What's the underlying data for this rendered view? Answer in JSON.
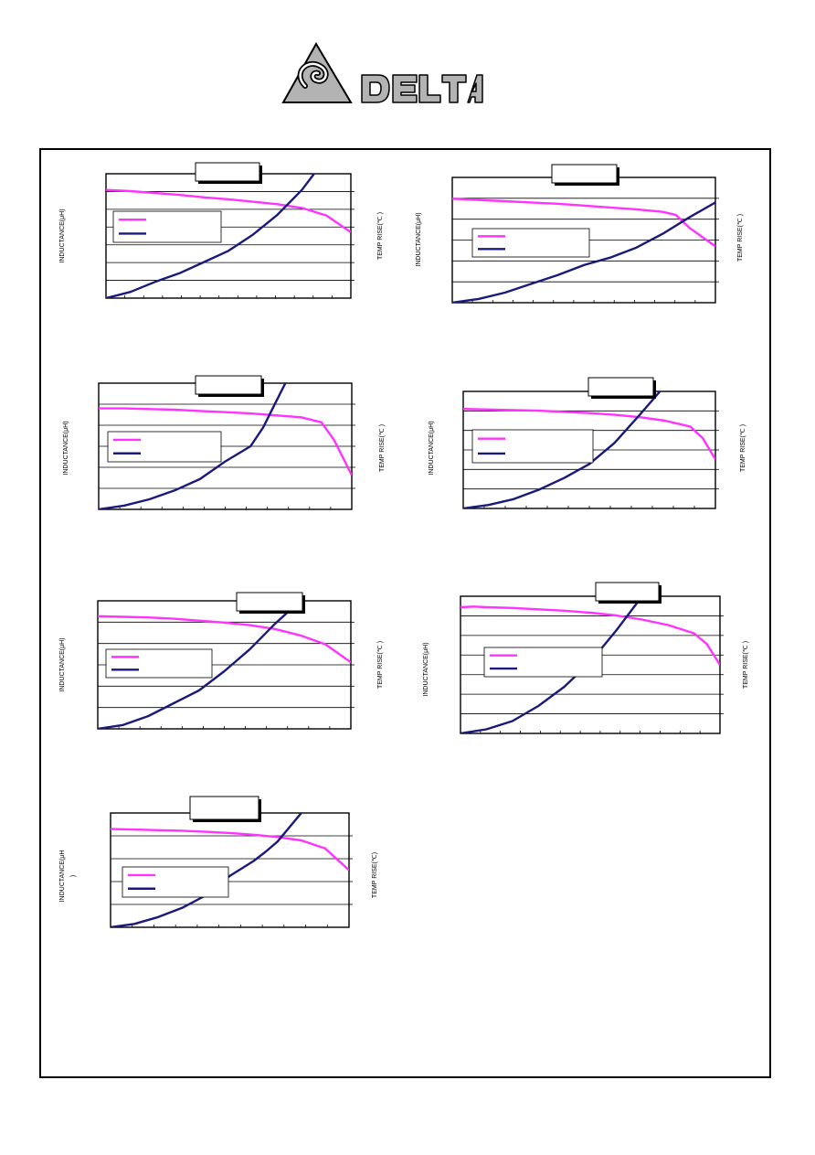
{
  "logo": {
    "brand": "DELTA",
    "colors": {
      "fill": "#a9a9a9",
      "stroke": "#000000"
    }
  },
  "colors": {
    "inductance": "#ff33ff",
    "temp_rise": "#1a1a7a",
    "grid": "#000000",
    "frame": "#000000"
  },
  "chart_data": [
    {
      "type": "line",
      "ylabel_left": "INDUCTANCE(μH)",
      "ylabel_right": "TEMP RISE(℃ )",
      "grid": "horizontal",
      "legend": "upper-left",
      "series": [
        {
          "x": [
            0,
            0.1,
            0.2,
            0.3,
            0.4,
            0.5,
            0.6,
            0.7,
            0.8,
            0.9,
            1
          ],
          "values": [
            0.87,
            0.86,
            0.845,
            0.83,
            0.81,
            0.795,
            0.775,
            0.755,
            0.725,
            0.665,
            0.53
          ]
        },
        {
          "x": [
            0,
            0.1,
            0.2,
            0.3,
            0.4,
            0.5,
            0.6,
            0.7,
            0.8,
            0.85,
            0.88,
            0.9
          ],
          "values": [
            0,
            0.05,
            0.13,
            0.2,
            0.29,
            0.38,
            0.51,
            0.67,
            0.87,
            1.0,
            1.07,
            1.15
          ]
        }
      ]
    },
    {
      "type": "line",
      "ylabel_left": "INDUCTANCE(μH)",
      "ylabel_right": "TEMP RISE(℃ )",
      "grid": "horizontal",
      "legend": "left",
      "series": [
        {
          "x": [
            0,
            0.1,
            0.2,
            0.3,
            0.4,
            0.5,
            0.6,
            0.7,
            0.8,
            0.85,
            0.9,
            1
          ],
          "values": [
            0.83,
            0.82,
            0.81,
            0.8,
            0.79,
            0.775,
            0.76,
            0.745,
            0.725,
            0.7,
            0.6,
            0.45
          ]
        },
        {
          "x": [
            0,
            0.1,
            0.2,
            0.3,
            0.4,
            0.5,
            0.6,
            0.7,
            0.8,
            0.9,
            1
          ],
          "values": [
            0,
            0.03,
            0.08,
            0.15,
            0.22,
            0.3,
            0.36,
            0.44,
            0.55,
            0.68,
            0.8
          ]
        }
      ]
    },
    {
      "type": "line",
      "ylabel_left": "INDUCTANCE(μH)",
      "ylabel_right": "TEMP RISE(℃ )",
      "grid": "horizontal",
      "legend": "left",
      "series": [
        {
          "x": [
            0,
            0.1,
            0.2,
            0.3,
            0.4,
            0.5,
            0.6,
            0.7,
            0.8,
            0.88,
            0.93,
            1
          ],
          "values": [
            0.8,
            0.8,
            0.795,
            0.79,
            0.78,
            0.77,
            0.76,
            0.745,
            0.73,
            0.69,
            0.55,
            0.27
          ]
        },
        {
          "x": [
            0,
            0.1,
            0.2,
            0.3,
            0.4,
            0.5,
            0.6,
            0.65,
            0.7,
            0.75,
            0.8
          ],
          "values": [
            0,
            0.03,
            0.08,
            0.15,
            0.24,
            0.38,
            0.5,
            0.65,
            0.85,
            1.05,
            1.2
          ]
        }
      ]
    },
    {
      "type": "line",
      "ylabel_left": "INDUCTANCE(μH)",
      "ylabel_right": "TEMP RISE(℃ )",
      "grid": "horizontal",
      "legend": "left",
      "series": [
        {
          "x": [
            0,
            0.1,
            0.2,
            0.3,
            0.4,
            0.5,
            0.6,
            0.7,
            0.8,
            0.9,
            0.95,
            1
          ],
          "values": [
            0.85,
            0.845,
            0.84,
            0.835,
            0.825,
            0.815,
            0.8,
            0.78,
            0.75,
            0.7,
            0.6,
            0.42
          ]
        },
        {
          "x": [
            0,
            0.1,
            0.2,
            0.3,
            0.4,
            0.5,
            0.6,
            0.7,
            0.8,
            0.9
          ],
          "values": [
            0,
            0.03,
            0.08,
            0.16,
            0.26,
            0.38,
            0.56,
            0.8,
            1.05,
            1.3
          ]
        }
      ]
    },
    {
      "type": "line",
      "ylabel_left": "INDUCTANCE(μH)",
      "ylabel_right": "TEMP RISE(℃ )",
      "grid": "horizontal",
      "legend": "left",
      "series": [
        {
          "x": [
            0,
            0.1,
            0.2,
            0.3,
            0.4,
            0.5,
            0.6,
            0.7,
            0.8,
            0.9,
            1
          ],
          "values": [
            0.88,
            0.875,
            0.87,
            0.86,
            0.845,
            0.83,
            0.81,
            0.78,
            0.73,
            0.66,
            0.52
          ]
        },
        {
          "x": [
            0,
            0.1,
            0.2,
            0.3,
            0.4,
            0.5,
            0.6,
            0.7,
            0.8,
            0.9,
            1
          ],
          "values": [
            0,
            0.03,
            0.1,
            0.2,
            0.3,
            0.45,
            0.62,
            0.82,
            1.0,
            1.25,
            1.55
          ]
        }
      ]
    },
    {
      "type": "line",
      "ylabel_left": "INDUCTANCE(μH)",
      "ylabel_right": "TEMP RISE(℃ )",
      "grid": "horizontal",
      "legend": "left",
      "series": [
        {
          "x": [
            0,
            0.05,
            0.1,
            0.2,
            0.3,
            0.4,
            0.5,
            0.6,
            0.7,
            0.8,
            0.9,
            0.95,
            1
          ],
          "values": [
            0.92,
            0.925,
            0.92,
            0.915,
            0.905,
            0.895,
            0.88,
            0.86,
            0.83,
            0.79,
            0.73,
            0.65,
            0.5
          ]
        },
        {
          "x": [
            0,
            0.1,
            0.2,
            0.3,
            0.4,
            0.5,
            0.6,
            0.7,
            0.8,
            0.9
          ],
          "values": [
            0,
            0.03,
            0.09,
            0.2,
            0.34,
            0.52,
            0.75,
            1.0,
            1.3,
            1.6
          ]
        }
      ]
    },
    {
      "type": "line",
      "ylabel_left": "INDUCTANCE(μH\n)",
      "ylabel_right": "TEMP RISE(℃)",
      "grid": "horizontal",
      "legend": "left",
      "series": [
        {
          "x": [
            0,
            0.1,
            0.2,
            0.3,
            0.4,
            0.5,
            0.6,
            0.7,
            0.8,
            0.9,
            1
          ],
          "values": [
            0.86,
            0.855,
            0.85,
            0.845,
            0.835,
            0.825,
            0.81,
            0.79,
            0.76,
            0.69,
            0.5
          ]
        },
        {
          "x": [
            0,
            0.1,
            0.2,
            0.3,
            0.4,
            0.5,
            0.6,
            0.65,
            0.7,
            0.8,
            0.85
          ],
          "values": [
            0,
            0.03,
            0.09,
            0.17,
            0.28,
            0.45,
            0.58,
            0.66,
            0.75,
            1.0,
            1.15
          ]
        }
      ]
    }
  ]
}
